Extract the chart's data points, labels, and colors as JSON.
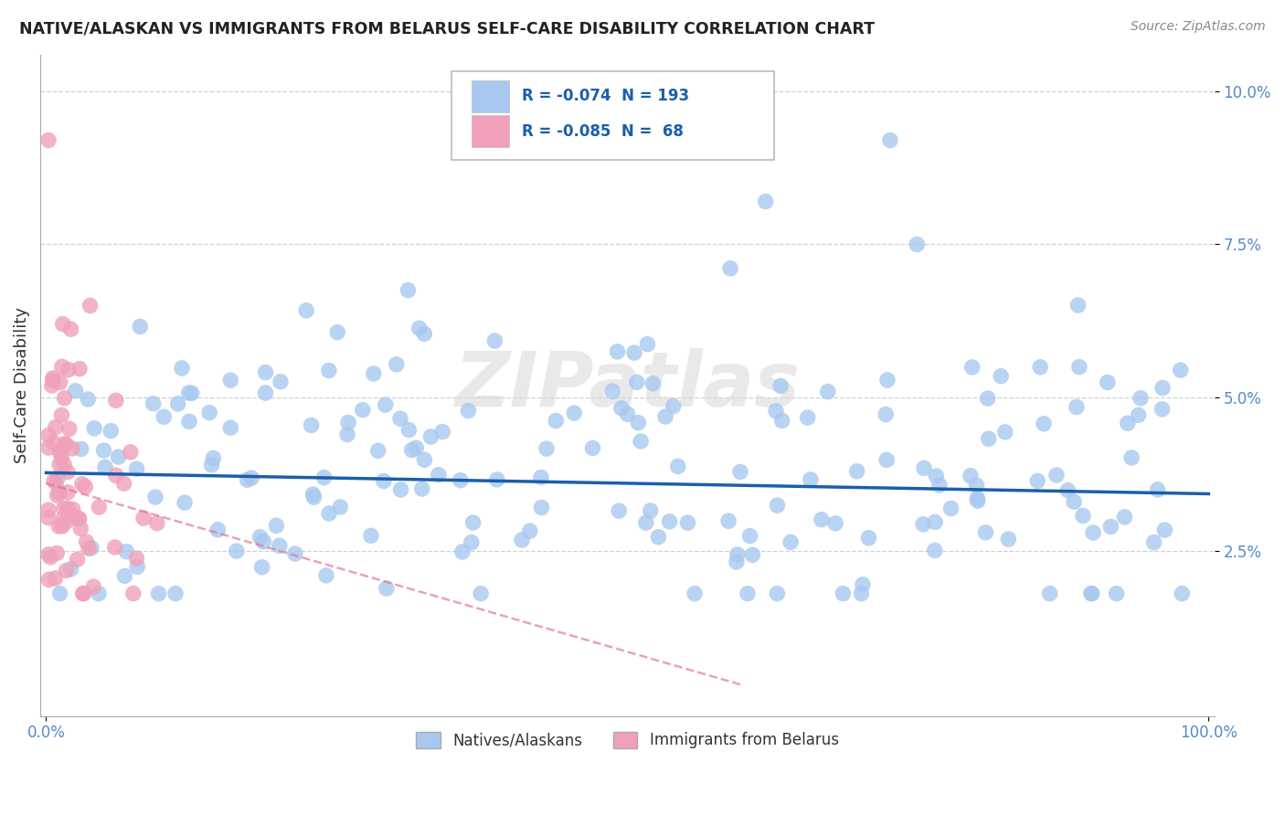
{
  "title": "NATIVE/ALASKAN VS IMMIGRANTS FROM BELARUS SELF-CARE DISABILITY CORRELATION CHART",
  "source": "Source: ZipAtlas.com",
  "ylabel": "Self-Care Disability",
  "blue_R": -0.074,
  "blue_N": 193,
  "pink_R": -0.085,
  "pink_N": 68,
  "legend_label_blue": "Natives/Alaskans",
  "legend_label_pink": "Immigrants from Belarus",
  "blue_color": "#a8c8f0",
  "pink_color": "#f0a0b8",
  "blue_line_color": "#1a5faa",
  "pink_line_color": "#e07090",
  "watermark": "ZIPatlas",
  "background_color": "#ffffff",
  "grid_color": "#d0d0d0",
  "title_color": "#222222",
  "source_color": "#888888",
  "tick_color": "#5588cc",
  "ylabel_color": "#333333",
  "box_edge_color": "#bbbbbb"
}
